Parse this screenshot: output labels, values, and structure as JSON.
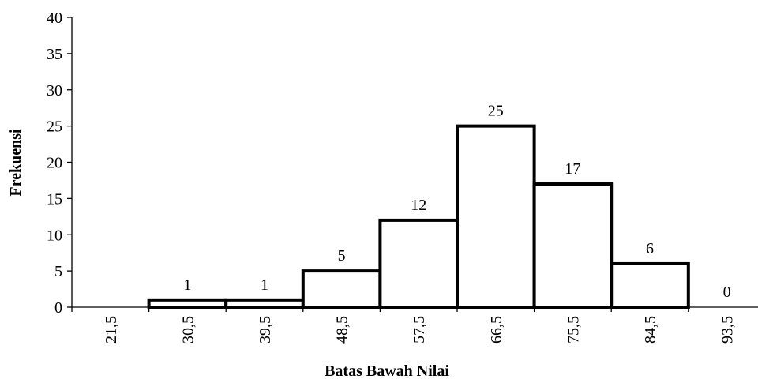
{
  "chart_data": {
    "type": "bar",
    "title": "",
    "xlabel": "Batas Bawah Nilai",
    "ylabel": "Frekuensi",
    "categories": [
      "21,5",
      "30,5",
      "39,5",
      "48,5",
      "57,5",
      "66,5",
      "75,5",
      "84,5",
      "93,5"
    ],
    "values": [
      null,
      1,
      1,
      5,
      12,
      25,
      17,
      6,
      0
    ],
    "data_labels": [
      "",
      "1",
      "1",
      "5",
      "12",
      "25",
      "17",
      "6",
      "0"
    ],
    "y_ticks": [
      "0",
      "5",
      "10",
      "15",
      "20",
      "25",
      "30",
      "35",
      "40"
    ],
    "ylim": [
      0,
      40
    ],
    "grid": false,
    "legend": "none",
    "bar_fill": "#ffffff",
    "bar_stroke": "#000000",
    "axis_color": "#000000"
  }
}
